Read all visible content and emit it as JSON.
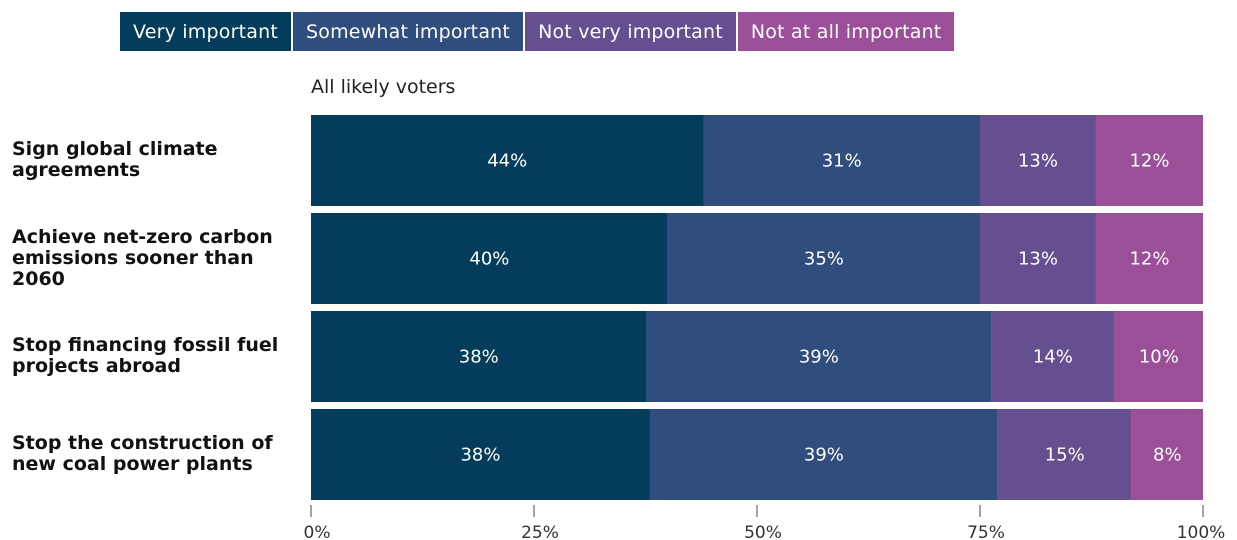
{
  "chart_data": {
    "type": "bar",
    "orientation": "horizontal",
    "stacked": true,
    "subtitle": "All likely voters",
    "categories": [
      "Sign global climate agreements",
      "Achieve net-zero carbon emissions sooner than 2060",
      "Stop financing fossil fuel projects abroad",
      "Stop the construction of new coal power plants"
    ],
    "series": [
      {
        "name": "Very important",
        "color": "#033d5b",
        "values": [
          44,
          40,
          38,
          38
        ],
        "labels": [
          "44%",
          "40%",
          "38%",
          "38%"
        ]
      },
      {
        "name": "Somewhat important",
        "color": "#2f4d7d",
        "values": [
          31,
          35,
          39,
          39
        ],
        "labels": [
          "31%",
          "35%",
          "39%",
          "39%"
        ]
      },
      {
        "name": "Not very important",
        "color": "#654f90",
        "values": [
          13,
          13,
          14,
          15
        ],
        "labels": [
          "13%",
          "13%",
          "14%",
          "15%"
        ]
      },
      {
        "name": "Not at all important",
        "color": "#9b4f99",
        "values": [
          12,
          12,
          10,
          8
        ],
        "labels": [
          "12%",
          "12%",
          "10%",
          "8%"
        ]
      }
    ],
    "xlim": [
      0,
      100
    ],
    "xticks": [
      0,
      25,
      50,
      75,
      100
    ],
    "xtick_labels": [
      "0%",
      "25%",
      "50%",
      "75%",
      "100%"
    ],
    "legend_position": "top",
    "grid": false
  }
}
